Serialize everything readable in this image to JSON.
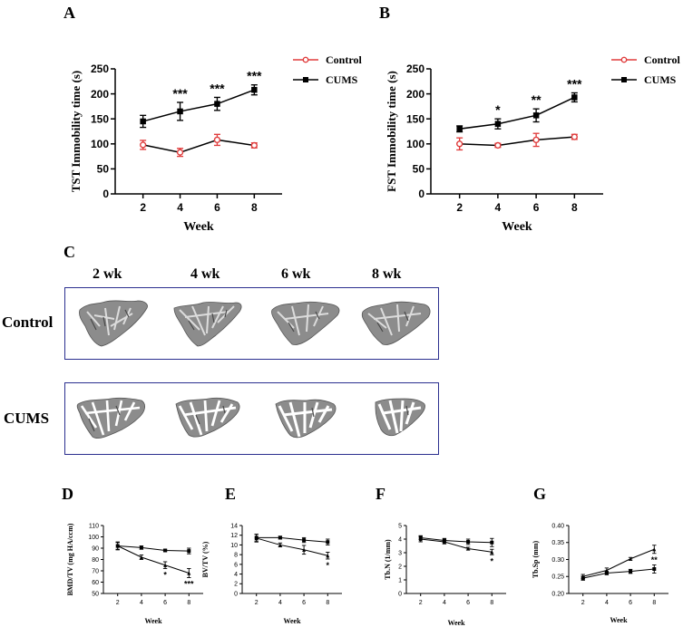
{
  "panel_letters": [
    "A",
    "B",
    "C",
    "D",
    "E",
    "F",
    "G"
  ],
  "ct_panel": {
    "column_labels": [
      "2 wk",
      "4 wk",
      "6 wk",
      "8 wk"
    ],
    "row_labels": [
      "Control",
      "CUMS"
    ]
  },
  "colors": {
    "control": "#e03c3c",
    "cums": "#000000",
    "frame": "#2b2f8f",
    "bone": "#8c8c8c"
  },
  "chart_data": [
    {
      "id": "A",
      "type": "line",
      "xlabel": "Week",
      "ylabel": "TST Immobility time (s)",
      "x": [
        2,
        4,
        6,
        8
      ],
      "xlim": [
        0.5,
        9.5
      ],
      "ylim": [
        0,
        250
      ],
      "yticks": [
        0,
        50,
        100,
        150,
        200,
        250
      ],
      "legend": "top-right",
      "series": [
        {
          "name": "Control",
          "values": [
            98,
            83,
            108,
            97
          ],
          "errors": [
            9,
            8,
            11,
            5
          ],
          "marker": "circle-open"
        },
        {
          "name": "CUMS",
          "values": [
            145,
            165,
            180,
            208
          ],
          "errors": [
            12,
            18,
            13,
            10
          ],
          "marker": "square",
          "annotations": [
            "",
            "***",
            "***",
            "***"
          ]
        }
      ]
    },
    {
      "id": "B",
      "type": "line",
      "xlabel": "Week",
      "ylabel": "FST Immobility time (s)",
      "x": [
        2,
        4,
        6,
        8
      ],
      "xlim": [
        0.5,
        9.5
      ],
      "ylim": [
        0,
        250
      ],
      "yticks": [
        0,
        50,
        100,
        150,
        200,
        250
      ],
      "legend": "top-right",
      "series": [
        {
          "name": "Control",
          "values": [
            100,
            97,
            108,
            114
          ],
          "errors": [
            12,
            4,
            13,
            5
          ],
          "marker": "circle-open"
        },
        {
          "name": "CUMS",
          "values": [
            130,
            140,
            157,
            193
          ],
          "errors": [
            6,
            10,
            13,
            9
          ],
          "marker": "square",
          "annotations": [
            "",
            "*",
            "**",
            "***"
          ]
        }
      ]
    },
    {
      "id": "D",
      "type": "line",
      "xlabel": "Week",
      "ylabel": "BMD/TV (mg HA/ccm)",
      "x": [
        2,
        4,
        6,
        8
      ],
      "xlim": [
        0.8,
        9.2
      ],
      "ylim": [
        50,
        110
      ],
      "yticks": [
        50,
        60,
        70,
        80,
        90,
        100,
        110
      ],
      "series": [
        {
          "name": "Control",
          "values": [
            92,
            90.5,
            88,
            87.5
          ],
          "errors": [
            3,
            1.5,
            1,
            2.5
          ],
          "marker": "square"
        },
        {
          "name": "CUMS",
          "values": [
            92,
            82,
            75,
            68
          ],
          "errors": [
            3.5,
            2,
            3,
            4
          ],
          "marker": "triangle",
          "annotations": [
            "",
            "",
            "*",
            "***"
          ]
        }
      ]
    },
    {
      "id": "E",
      "type": "line",
      "xlabel": "Week",
      "ylabel": "BV/TV (%)",
      "x": [
        2,
        4,
        6,
        8
      ],
      "xlim": [
        0.8,
        9.2
      ],
      "ylim": [
        0,
        14
      ],
      "yticks": [
        0,
        2,
        4,
        6,
        8,
        10,
        12,
        14
      ],
      "series": [
        {
          "name": "Control",
          "values": [
            11.5,
            11.5,
            11,
            10.6
          ],
          "errors": [
            0.7,
            0.3,
            0.5,
            0.6
          ],
          "marker": "square"
        },
        {
          "name": "CUMS",
          "values": [
            11.4,
            10,
            9,
            7.8
          ],
          "errors": [
            0.8,
            0.4,
            0.9,
            0.7
          ],
          "marker": "triangle",
          "annotations": [
            "",
            "",
            "",
            "*"
          ]
        }
      ]
    },
    {
      "id": "F",
      "type": "line",
      "xlabel": "Week",
      "ylabel": "Tb.N (1/mm)",
      "x": [
        2,
        4,
        6,
        8
      ],
      "xlim": [
        0.8,
        9.2
      ],
      "ylim": [
        0,
        5
      ],
      "yticks": [
        0,
        1,
        2,
        3,
        4,
        5
      ],
      "series": [
        {
          "name": "Control",
          "values": [
            4.1,
            3.9,
            3.8,
            3.75
          ],
          "errors": [
            0.15,
            0.15,
            0.2,
            0.3
          ],
          "marker": "square"
        },
        {
          "name": "CUMS",
          "values": [
            4.0,
            3.8,
            3.3,
            3.05
          ],
          "errors": [
            0.2,
            0.15,
            0.1,
            0.2
          ],
          "marker": "triangle",
          "annotations": [
            "",
            "",
            "",
            "*"
          ]
        }
      ]
    },
    {
      "id": "G",
      "type": "line",
      "xlabel": "Week",
      "ylabel": "Tb.Sp (mm)",
      "x": [
        2,
        4,
        6,
        8
      ],
      "xlim": [
        0.8,
        9.2
      ],
      "ylim": [
        0.2,
        0.4
      ],
      "yticks": [
        0.2,
        0.25,
        0.3,
        0.35,
        0.4
      ],
      "ytick_labels": [
        "0.20",
        "0.25",
        "0.30",
        "0.35",
        "0.40"
      ],
      "series": [
        {
          "name": "Control",
          "values": [
            0.245,
            0.26,
            0.265,
            0.272
          ],
          "errors": [
            0.006,
            0.005,
            0.006,
            0.012
          ],
          "marker": "square"
        },
        {
          "name": "CUMS",
          "values": [
            0.25,
            0.268,
            0.302,
            0.33
          ],
          "errors": [
            0.006,
            0.007,
            0.004,
            0.012
          ],
          "marker": "triangle",
          "annotations": [
            "",
            "",
            "",
            "**"
          ]
        }
      ]
    }
  ]
}
